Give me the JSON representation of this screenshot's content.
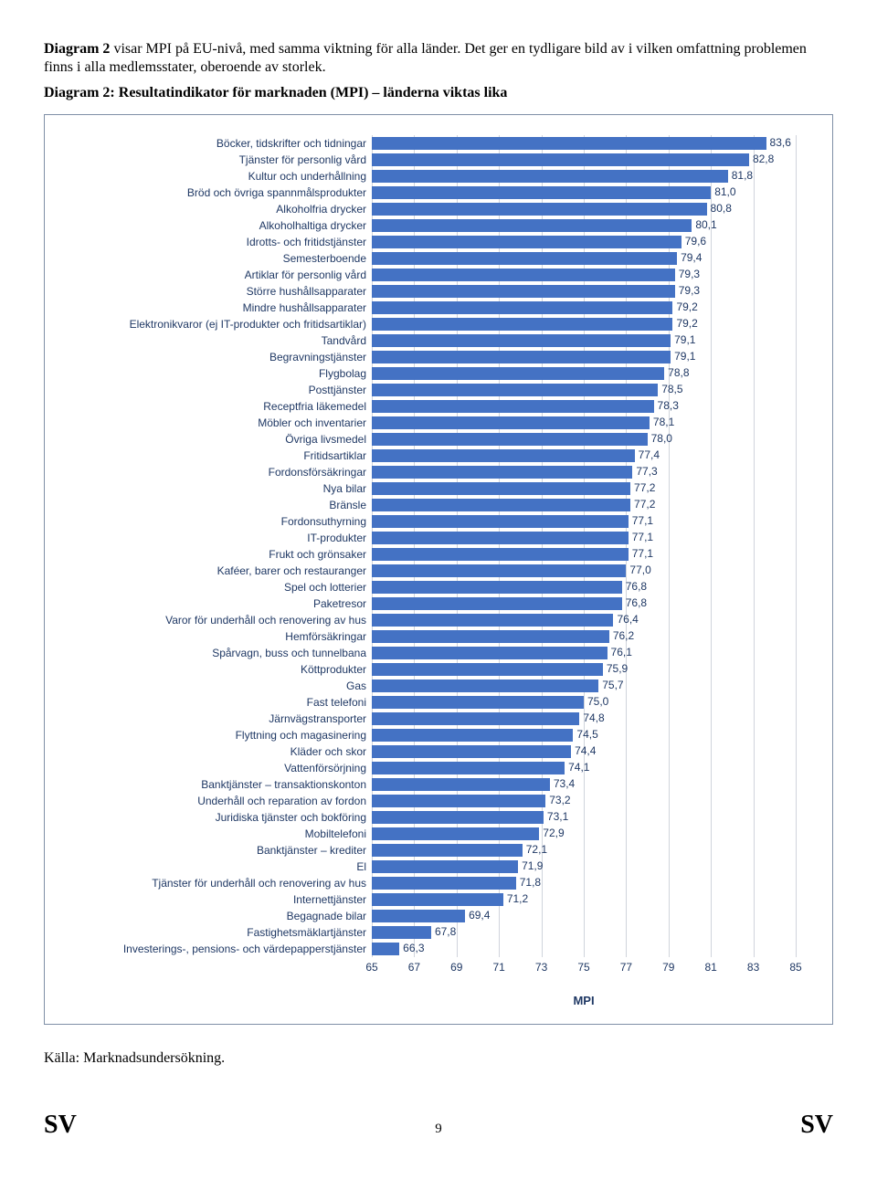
{
  "intro": {
    "bold_lead": "Diagram 2",
    "rest": " visar MPI på EU-nivå, med samma viktning för alla länder. Det ger en tydligare bild av i vilken omfattning problemen finns i alla medlemsstater, oberoende av storlek."
  },
  "chart_title": "Diagram 2: Resultatindikator för marknaden (MPI) – länderna viktas lika",
  "chart": {
    "type": "bar-horizontal",
    "xlim": [
      65,
      85
    ],
    "xtick_step": 2,
    "bar_color": "#4472c4",
    "label_color": "#1f3864",
    "grid_color": "#d0d4dc",
    "background_color": "#ffffff",
    "label_fontsize": 12,
    "tick_fontsize": 12,
    "axis_title": "MPI",
    "ticks": [
      "65",
      "67",
      "69",
      "71",
      "73",
      "75",
      "77",
      "79",
      "81",
      "83",
      "85"
    ],
    "items": [
      {
        "label": "Böcker, tidskrifter och tidningar",
        "value": 83.6,
        "text": "83,6"
      },
      {
        "label": "Tjänster för personlig vård",
        "value": 82.8,
        "text": "82,8"
      },
      {
        "label": "Kultur och underhållning",
        "value": 81.8,
        "text": "81,8"
      },
      {
        "label": "Bröd och övriga spannmålsprodukter",
        "value": 81.0,
        "text": "81,0"
      },
      {
        "label": "Alkoholfria drycker",
        "value": 80.8,
        "text": "80,8"
      },
      {
        "label": "Alkoholhaltiga drycker",
        "value": 80.1,
        "text": "80,1"
      },
      {
        "label": "Idrotts- och fritidstjänster",
        "value": 79.6,
        "text": "79,6"
      },
      {
        "label": "Semesterboende",
        "value": 79.4,
        "text": "79,4"
      },
      {
        "label": "Artiklar för personlig vård",
        "value": 79.3,
        "text": "79,3"
      },
      {
        "label": "Större hushållsapparater",
        "value": 79.3,
        "text": "79,3"
      },
      {
        "label": "Mindre hushållsapparater",
        "value": 79.2,
        "text": "79,2"
      },
      {
        "label": "Elektronikvaror (ej IT-produkter och fritidsartiklar)",
        "value": 79.2,
        "text": "79,2"
      },
      {
        "label": "Tandvård",
        "value": 79.1,
        "text": "79,1"
      },
      {
        "label": "Begravningstjänster",
        "value": 79.1,
        "text": "79,1"
      },
      {
        "label": "Flygbolag",
        "value": 78.8,
        "text": "78,8"
      },
      {
        "label": "Posttjänster",
        "value": 78.5,
        "text": "78,5"
      },
      {
        "label": "Receptfria läkemedel",
        "value": 78.3,
        "text": "78,3"
      },
      {
        "label": "Möbler och inventarier",
        "value": 78.1,
        "text": "78,1"
      },
      {
        "label": "Övriga livsmedel",
        "value": 78.0,
        "text": "78,0"
      },
      {
        "label": "Fritidsartiklar",
        "value": 77.4,
        "text": "77,4"
      },
      {
        "label": "Fordonsförsäkringar",
        "value": 77.3,
        "text": "77,3"
      },
      {
        "label": "Nya bilar",
        "value": 77.2,
        "text": "77,2"
      },
      {
        "label": "Bränsle",
        "value": 77.2,
        "text": "77,2"
      },
      {
        "label": "Fordonsuthyrning",
        "value": 77.1,
        "text": "77,1"
      },
      {
        "label": "IT-produkter",
        "value": 77.1,
        "text": "77,1"
      },
      {
        "label": "Frukt och grönsaker",
        "value": 77.1,
        "text": "77,1"
      },
      {
        "label": "Kaféer, barer och restauranger",
        "value": 77.0,
        "text": "77,0"
      },
      {
        "label": "Spel och lotterier",
        "value": 76.8,
        "text": "76,8"
      },
      {
        "label": "Paketresor",
        "value": 76.8,
        "text": "76,8"
      },
      {
        "label": "Varor för underhåll och renovering av hus",
        "value": 76.4,
        "text": "76,4"
      },
      {
        "label": "Hemförsäkringar",
        "value": 76.2,
        "text": "76,2"
      },
      {
        "label": "Spårvagn, buss och tunnelbana",
        "value": 76.1,
        "text": "76,1"
      },
      {
        "label": "Köttprodukter",
        "value": 75.9,
        "text": "75,9"
      },
      {
        "label": "Gas",
        "value": 75.7,
        "text": "75,7"
      },
      {
        "label": "Fast telefoni",
        "value": 75.0,
        "text": "75,0"
      },
      {
        "label": "Järnvägstransporter",
        "value": 74.8,
        "text": "74,8"
      },
      {
        "label": "Flyttning och magasinering",
        "value": 74.5,
        "text": "74,5"
      },
      {
        "label": "Kläder och skor",
        "value": 74.4,
        "text": "74,4"
      },
      {
        "label": "Vattenförsörjning",
        "value": 74.1,
        "text": "74,1"
      },
      {
        "label": "Banktjänster – transaktionskonton",
        "value": 73.4,
        "text": "73,4"
      },
      {
        "label": "Underhåll och reparation av fordon",
        "value": 73.2,
        "text": "73,2"
      },
      {
        "label": "Juridiska tjänster och bokföring",
        "value": 73.1,
        "text": "73,1"
      },
      {
        "label": "Mobiltelefoni",
        "value": 72.9,
        "text": "72,9"
      },
      {
        "label": "Banktjänster – krediter",
        "value": 72.1,
        "text": "72,1"
      },
      {
        "label": "El",
        "value": 71.9,
        "text": "71,9"
      },
      {
        "label": "Tjänster för underhåll och renovering av hus",
        "value": 71.8,
        "text": "71,8"
      },
      {
        "label": "Internettjänster",
        "value": 71.2,
        "text": "71,2"
      },
      {
        "label": "Begagnade bilar",
        "value": 69.4,
        "text": "69,4"
      },
      {
        "label": "Fastighetsmäklartjänster",
        "value": 67.8,
        "text": "67,8"
      },
      {
        "label": "Investerings-, pensions- och värdepapperstjänster",
        "value": 66.3,
        "text": "66,3"
      }
    ]
  },
  "source": "Källa: Marknadsundersökning.",
  "footer": {
    "left": "SV",
    "page": "9",
    "right": "SV"
  }
}
